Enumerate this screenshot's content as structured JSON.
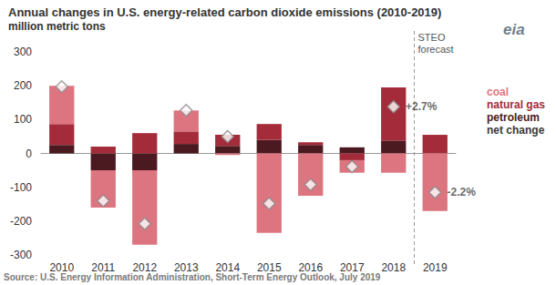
{
  "chart_data": {
    "type": "bar",
    "title": "Annual changes in U.S. energy-related carbon dioxide emissions (2010-2019)",
    "subtitle": "million metric tons",
    "source": "Source: U.S. Energy Information Administration, Short-Term Energy Outlook, July 2019",
    "logo": "eia",
    "categories": [
      "2010",
      "2011",
      "2012",
      "2013",
      "2014",
      "2015",
      "2016",
      "2017",
      "2018",
      "2019"
    ],
    "series": [
      {
        "name": "coal",
        "color": "#dc7580",
        "values": [
          113,
          -110,
          -220,
          62,
          -5,
          -235,
          -125,
          -37,
          -57,
          -170
        ]
      },
      {
        "name": "natural gas",
        "color": "#a42b3a",
        "values": [
          62,
          20,
          60,
          37,
          33,
          47,
          8,
          -20,
          157,
          55
        ]
      },
      {
        "name": "petroleum",
        "color": "#4b1a20",
        "values": [
          25,
          -50,
          -50,
          28,
          22,
          40,
          25,
          18,
          38,
          0
        ]
      },
      {
        "name": "net change",
        "type": "scatter",
        "marker": "diamond",
        "color": "#ffffff",
        "values": [
          197,
          -140,
          -208,
          127,
          50,
          -148,
          -92,
          -39,
          138,
          -115
        ]
      }
    ],
    "ylim": [
      -300,
      300
    ],
    "yticks": [
      -300,
      -200,
      -100,
      0,
      100,
      200,
      300
    ],
    "grid": false,
    "stacked": true,
    "legend": "right",
    "annotations": [
      {
        "text": "+2.7%",
        "category": "2018"
      },
      {
        "text": "-2.2%",
        "category": "2019"
      }
    ],
    "forecast_label": {
      "text": "STEO forecast",
      "category": "2019"
    }
  }
}
